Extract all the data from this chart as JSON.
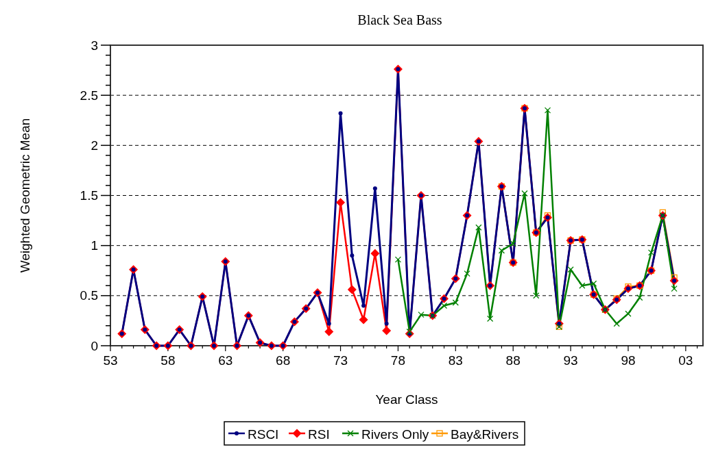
{
  "chart_data": {
    "type": "line",
    "title": "Black Sea Bass",
    "xlabel": "Year Class",
    "ylabel": "Weighted Geometric Mean",
    "x": [
      1954,
      1955,
      1956,
      1957,
      1958,
      1959,
      1960,
      1961,
      1962,
      1963,
      1964,
      1965,
      1966,
      1967,
      1968,
      1969,
      1970,
      1971,
      1972,
      1973,
      1974,
      1975,
      1976,
      1977,
      1978,
      1979,
      1980,
      1981,
      1982,
      1983,
      1984,
      1985,
      1986,
      1987,
      1988,
      1989,
      1990,
      1991,
      1992,
      1993,
      1994,
      1995,
      1996,
      1997,
      1998,
      1999,
      2000,
      2001,
      2002
    ],
    "series": [
      {
        "name": "RSCI",
        "color": "#000080",
        "marker": "circle",
        "values": [
          0.12,
          0.76,
          0.16,
          0,
          0,
          0.16,
          0,
          0.49,
          0,
          0.84,
          0,
          0.3,
          0.03,
          0,
          0,
          0.24,
          0.37,
          0.53,
          0.22,
          2.32,
          0.9,
          0.4,
          1.57,
          0.22,
          2.76,
          0.12,
          1.5,
          0.3,
          0.47,
          0.67,
          1.3,
          2.04,
          0.6,
          1.59,
          0.83,
          2.37,
          1.13,
          1.28,
          0.22,
          1.05,
          1.06,
          0.51,
          0.36,
          0.46,
          0.57,
          0.6,
          0.75,
          1.3,
          0.65
        ]
      },
      {
        "name": "RSI",
        "color": "#ff0000",
        "marker": "diamond",
        "values": [
          0.12,
          0.76,
          0.16,
          0,
          0,
          0.16,
          0,
          0.49,
          0,
          0.84,
          0,
          0.3,
          0.03,
          0,
          0,
          0.24,
          0.37,
          0.53,
          0.14,
          1.43,
          0.56,
          0.26,
          0.92,
          0.15,
          2.76,
          0.12,
          1.5,
          0.3,
          0.47,
          0.67,
          1.3,
          2.04,
          0.6,
          1.59,
          0.83,
          2.37,
          1.13,
          1.28,
          0.22,
          1.05,
          1.06,
          0.51,
          0.36,
          0.46,
          0.57,
          0.6,
          0.75,
          1.3,
          0.65
        ]
      },
      {
        "name": "Rivers Only",
        "color": "#008000",
        "marker": "cross",
        "values": [
          null,
          null,
          null,
          null,
          null,
          null,
          null,
          null,
          null,
          null,
          null,
          null,
          null,
          null,
          null,
          null,
          null,
          null,
          null,
          null,
          null,
          null,
          null,
          null,
          0.86,
          0.14,
          0.31,
          0.3,
          0.4,
          0.43,
          0.72,
          1.18,
          0.27,
          0.95,
          1.02,
          1.52,
          0.5,
          2.35,
          0.19,
          0.76,
          0.6,
          0.62,
          0.36,
          0.22,
          0.32,
          0.48,
          0.93,
          1.3,
          0.57
        ]
      },
      {
        "name": "Bay&Rivers",
        "color": "#ff9900",
        "marker": "square",
        "values": [
          null,
          null,
          null,
          null,
          null,
          null,
          null,
          null,
          null,
          null,
          null,
          null,
          null,
          null,
          null,
          null,
          null,
          null,
          null,
          null,
          null,
          null,
          null,
          null,
          null,
          null,
          null,
          null,
          null,
          null,
          null,
          null,
          null,
          1.59,
          0.83,
          2.37,
          1.13,
          1.3,
          0.19,
          1.05,
          1.06,
          0.51,
          0.36,
          0.47,
          0.59,
          0.6,
          0.75,
          1.33,
          0.68
        ]
      }
    ],
    "xlim": [
      1953,
      2004.5
    ],
    "xticks": [
      {
        "value": 1953,
        "label": "53"
      },
      {
        "value": 1954,
        "label": null
      },
      {
        "value": 1955,
        "label": null
      },
      {
        "value": 1956,
        "label": null
      },
      {
        "value": 1957,
        "label": null
      },
      {
        "value": 1958,
        "label": "58"
      },
      {
        "value": 1959,
        "label": null
      },
      {
        "value": 1960,
        "label": null
      },
      {
        "value": 1961,
        "label": null
      },
      {
        "value": 1962,
        "label": null
      },
      {
        "value": 1963,
        "label": "63"
      },
      {
        "value": 1964,
        "label": null
      },
      {
        "value": 1965,
        "label": null
      },
      {
        "value": 1966,
        "label": null
      },
      {
        "value": 1967,
        "label": null
      },
      {
        "value": 1968,
        "label": "68"
      },
      {
        "value": 1969,
        "label": null
      },
      {
        "value": 1970,
        "label": null
      },
      {
        "value": 1971,
        "label": null
      },
      {
        "value": 1972,
        "label": null
      },
      {
        "value": 1973,
        "label": "73"
      },
      {
        "value": 1974,
        "label": null
      },
      {
        "value": 1975,
        "label": null
      },
      {
        "value": 1976,
        "label": null
      },
      {
        "value": 1977,
        "label": null
      },
      {
        "value": 1978,
        "label": "78"
      },
      {
        "value": 1979,
        "label": null
      },
      {
        "value": 1980,
        "label": null
      },
      {
        "value": 1981,
        "label": null
      },
      {
        "value": 1982,
        "label": null
      },
      {
        "value": 1983,
        "label": "83"
      },
      {
        "value": 1984,
        "label": null
      },
      {
        "value": 1985,
        "label": null
      },
      {
        "value": 1986,
        "label": null
      },
      {
        "value": 1987,
        "label": null
      },
      {
        "value": 1988,
        "label": "88"
      },
      {
        "value": 1989,
        "label": null
      },
      {
        "value": 1990,
        "label": null
      },
      {
        "value": 1991,
        "label": null
      },
      {
        "value": 1992,
        "label": null
      },
      {
        "value": 1993,
        "label": "93"
      },
      {
        "value": 1994,
        "label": null
      },
      {
        "value": 1995,
        "label": null
      },
      {
        "value": 1996,
        "label": null
      },
      {
        "value": 1997,
        "label": null
      },
      {
        "value": 1998,
        "label": "98"
      },
      {
        "value": 1999,
        "label": null
      },
      {
        "value": 2000,
        "label": null
      },
      {
        "value": 2001,
        "label": null
      },
      {
        "value": 2002,
        "label": null
      },
      {
        "value": 2003,
        "label": "03"
      },
      {
        "value": 2004,
        "label": null
      }
    ],
    "ylim": [
      0,
      3
    ],
    "yticks": [
      0,
      {
        "value": 0.1,
        "label": null
      },
      {
        "value": 0.2,
        "label": null
      },
      {
        "value": 0.3,
        "label": null
      },
      {
        "value": 0.4,
        "label": null
      },
      0.5,
      {
        "value": 0.6,
        "label": null
      },
      {
        "value": 0.7,
        "label": null
      },
      {
        "value": 0.8,
        "label": null
      },
      {
        "value": 0.9,
        "label": null
      },
      1,
      {
        "value": 1.1,
        "label": null
      },
      {
        "value": 1.2,
        "label": null
      },
      {
        "value": 1.3,
        "label": null
      },
      {
        "value": 1.4,
        "label": null
      },
      1.5,
      {
        "value": 1.6,
        "label": null
      },
      {
        "value": 1.7,
        "label": null
      },
      {
        "value": 1.8,
        "label": null
      },
      {
        "value": 1.9,
        "label": null
      },
      2,
      {
        "value": 2.1,
        "label": null
      },
      {
        "value": 2.2,
        "label": null
      },
      {
        "value": 2.3,
        "label": null
      },
      {
        "value": 2.4,
        "label": null
      },
      2.5,
      {
        "value": 2.6,
        "label": null
      },
      {
        "value": 2.7,
        "label": null
      },
      {
        "value": 2.8,
        "label": null
      },
      {
        "value": 2.9,
        "label": null
      },
      3
    ],
    "grid": "y",
    "legend": "bottom",
    "line_style": "solid"
  }
}
